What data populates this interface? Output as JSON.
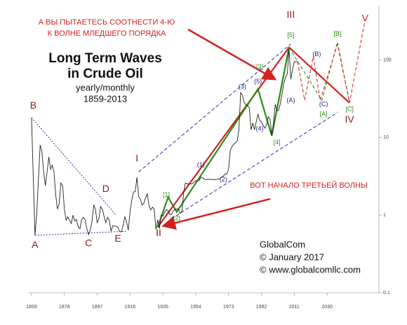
{
  "chart_data": {
    "type": "line",
    "log_y": true,
    "grid": false,
    "title": [
      "Long Term Waves",
      "in Crude Oil"
    ],
    "subtitle": [
      "yearly/monthly",
      "1859-2013"
    ],
    "credits": [
      "GlobalCom",
      "© January 2017",
      "© www.globalcomllc.com"
    ],
    "notes": [
      {
        "lines": [
          "А ВЫ ПЫТАЕТЕСЬ СООТНЕСТИ 4-Ю",
          "К ВОЛНЕ МЛЕДШЕГО ПОРЯДКА"
        ],
        "color": "#d42020"
      },
      {
        "lines": [
          "ВОТ НАЧАЛО ТРЕТЬЕЙ ВОЛНЫ"
        ],
        "color": "#d42020"
      }
    ],
    "xlim": [
      1857,
      2060
    ],
    "ylim": [
      0.1,
      500
    ],
    "xticks": [
      1859,
      1878,
      1897,
      1916,
      1935,
      1954,
      1973,
      1992,
      2011,
      2030
    ],
    "yticks": [
      0.1,
      1,
      10,
      100
    ],
    "color": "#222222",
    "x": [
      1859,
      1861,
      1862,
      1864,
      1865,
      1866,
      1867,
      1868,
      1869,
      1870,
      1871,
      1872,
      1873,
      1874,
      1875,
      1876,
      1877,
      1878,
      1879,
      1880,
      1881,
      1882,
      1883,
      1884,
      1885,
      1886,
      1887,
      1888,
      1889,
      1890,
      1891,
      1892,
      1893,
      1894,
      1895,
      1896,
      1897,
      1898,
      1899,
      1900,
      1901,
      1902,
      1903,
      1904,
      1905,
      1906,
      1907,
      1908,
      1909,
      1910,
      1911,
      1912,
      1913,
      1914,
      1915,
      1916,
      1917,
      1918,
      1919,
      1920,
      1921,
      1922,
      1923,
      1924,
      1925,
      1926,
      1927,
      1928,
      1929,
      1930,
      1931,
      1932,
      1933,
      1934,
      1935,
      1936,
      1937,
      1938,
      1939,
      1940,
      1941,
      1942,
      1943,
      1944,
      1945,
      1946,
      1947,
      1948,
      1949,
      1950,
      1951,
      1952,
      1953,
      1954,
      1955,
      1956,
      1957,
      1958,
      1959,
      1960,
      1961,
      1962,
      1963,
      1964,
      1965,
      1966,
      1967,
      1968,
      1969,
      1970,
      1971,
      1972,
      1973,
      1974,
      1975,
      1976,
      1977,
      1978,
      1979,
      1980,
      1981,
      1982,
      1983,
      1984,
      1985,
      1986,
      1987,
      1988,
      1989,
      1990,
      1991,
      1992,
      1993,
      1994,
      1995,
      1996,
      1997,
      1998,
      1999,
      2000,
      2001,
      2002,
      2003,
      2004,
      2005,
      2006,
      2007,
      2008,
      2009,
      2010,
      2011,
      2012,
      2013
    ],
    "values": [
      18,
      0.55,
      1.05,
      8,
      6.6,
      3.7,
      2.4,
      3.6,
      5.6,
      3.9,
      4.4,
      3.6,
      1.8,
      1.2,
      1.4,
      2.6,
      2.4,
      1.2,
      0.86,
      0.95,
      0.86,
      0.78,
      1.0,
      0.84,
      0.88,
      0.71,
      0.67,
      0.88,
      0.94,
      0.87,
      0.67,
      0.56,
      0.64,
      0.84,
      1.36,
      1.18,
      0.79,
      0.91,
      1.29,
      1.19,
      0.96,
      0.8,
      0.94,
      0.86,
      0.62,
      0.73,
      0.72,
      0.72,
      0.7,
      0.61,
      0.61,
      0.74,
      0.95,
      0.81,
      0.64,
      1.1,
      1.56,
      1.98,
      2.01,
      3.07,
      1.73,
      1.61,
      1.34,
      1.43,
      1.68,
      1.88,
      1.3,
      1.17,
      1.27,
      1.19,
      0.65,
      0.87,
      0.67,
      1.0,
      0.97,
      1.09,
      1.18,
      1.13,
      1.02,
      1.02,
      1.14,
      1.19,
      1.2,
      1.21,
      1.05,
      1.12,
      1.9,
      2.6,
      2.54,
      2.51,
      2.53,
      2.53,
      2.68,
      2.78,
      2.77,
      2.79,
      3.09,
      3.01,
      2.9,
      2.88,
      2.89,
      2.9,
      2.89,
      2.88,
      2.86,
      2.88,
      2.92,
      2.94,
      3.09,
      3.18,
      3.39,
      3.39,
      3.89,
      6.87,
      7.67,
      8.19,
      8.57,
      9.0,
      12.64,
      38,
      35,
      28.52,
      26.19,
      25.88,
      24.09,
      12.51,
      15.4,
      12.58,
      15.86,
      20.03,
      16.54,
      15.99,
      14.25,
      13.19,
      14.62,
      18.46,
      17.23,
      10.87,
      15.56,
      26.72,
      21.84,
      22.51,
      27.56,
      36.77,
      50.28,
      59.69,
      66.52,
      140,
      56.35,
      74.71,
      95.73,
      94.52,
      95.99
    ],
    "overlays": [
      {
        "color": "#3030a0",
        "style": "dotted",
        "x": [
          1861,
          1914
        ],
        "values": [
          0.55,
          0.62
        ]
      },
      {
        "color": "#3030a0",
        "style": "dotted",
        "x": [
          1859,
          1908
        ],
        "values": [
          18,
          1.0
        ]
      },
      {
        "color": "#3030a0",
        "style": "dashed",
        "x": [
          1921,
          2009
        ],
        "values": [
          3.6,
          160
        ]
      },
      {
        "color": "#3030a0",
        "style": "dashed",
        "x": [
          1940,
          2036
        ],
        "values": [
          0.9,
          21
        ]
      },
      {
        "color": "#d42020",
        "style": "solid",
        "x": [
          1932,
          2008,
          2043
        ],
        "values": [
          0.7,
          145,
          28
        ]
      },
      {
        "color": "#2e8b1a",
        "style": "solid",
        "x": [
          1932,
          1938,
          1943,
          1990,
          1998,
          2008
        ],
        "values": [
          0.7,
          1.7,
          1.1,
          42,
          10.5,
          145
        ]
      },
      {
        "color": "#2e8b1a",
        "style": "dashed",
        "x": [
          2008,
          2027,
          2036,
          2043
        ],
        "values": [
          145,
          30,
          170,
          28
        ]
      },
      {
        "color": "#d42020",
        "style": "dashed",
        "x": [
          2013,
          2017,
          2022,
          2026,
          2036,
          2043,
          2052
        ],
        "values": [
          95,
          30,
          110,
          30,
          160,
          28,
          330
        ]
      }
    ],
    "annotations": [
      {
        "text": "B",
        "x": 1860,
        "y": 25.6,
        "color": "#8b1a1a"
      },
      {
        "text": "A",
        "x": 1861,
        "y": 0.41,
        "color": "#8b1a1a"
      },
      {
        "text": "C",
        "x": 1892,
        "y": 0.43,
        "color": "#8b1a1a"
      },
      {
        "text": "D",
        "x": 1902,
        "y": 2.14,
        "color": "#8b1a1a"
      },
      {
        "text": "E",
        "x": 1909,
        "y": 0.49,
        "color": "#8b1a1a"
      },
      {
        "text": "I",
        "x": 1920,
        "y": 5.3,
        "color": "#8b1a1a"
      },
      {
        "text": "II",
        "x": 1932.5,
        "y": 0.58,
        "color": "#8b1a1a"
      },
      {
        "text": "III",
        "x": 2009,
        "y": 377,
        "color": "#8b1a1a"
      },
      {
        "text": "IV",
        "x": 2043,
        "y": 16.9,
        "color": "#8b1a1a"
      },
      {
        "text": "V",
        "x": 2052,
        "y": 340,
        "color": "#d42020"
      },
      {
        "text": "[1]",
        "x": 1937,
        "y": 1.8,
        "color": "#2e8b1a"
      },
      {
        "text": "[2]",
        "x": 1943,
        "y": 0.9,
        "color": "#2e8b1a"
      },
      {
        "text": "[3]",
        "x": 1991,
        "y": 81,
        "color": "#2e8b1a"
      },
      {
        "text": "[4]",
        "x": 2001,
        "y": 8.55,
        "color": "#2e8b1a"
      },
      {
        "text": "[5]",
        "x": 2009,
        "y": 207,
        "color": "#2e8b1a"
      },
      {
        "text": "[A]",
        "x": 2028,
        "y": 20,
        "color": "#2e8b1a"
      },
      {
        "text": "[B]",
        "x": 2036,
        "y": 215,
        "color": "#2e8b1a"
      },
      {
        "text": "[C]",
        "x": 2043,
        "y": 23,
        "color": "#2e8b1a"
      },
      {
        "text": "(1)",
        "x": 1957,
        "y": 4.4,
        "color": "#202080"
      },
      {
        "text": "(2)",
        "x": 1970,
        "y": 2.85,
        "color": "#202080"
      },
      {
        "text": "(3)",
        "x": 1981,
        "y": 44.8,
        "color": "#202080"
      },
      {
        "text": "(4)",
        "x": 1991,
        "y": 12.9,
        "color": "#202080"
      },
      {
        "text": "(5)",
        "x": 1990,
        "y": 52.6,
        "color": "#202080"
      },
      {
        "text": "(A)",
        "x": 2009,
        "y": 30,
        "color": "#202080"
      },
      {
        "text": "(B)",
        "x": 2024,
        "y": 118,
        "color": "#202080"
      },
      {
        "text": "(C)",
        "x": 2028,
        "y": 26.7,
        "color": "#202080"
      }
    ]
  }
}
